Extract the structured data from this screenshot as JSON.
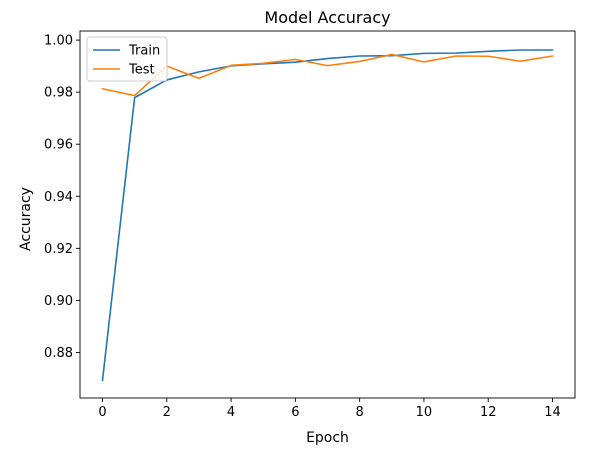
{
  "chart_data": {
    "type": "line",
    "title": "Model Accuracy",
    "xlabel": "Epoch",
    "ylabel": "Accuracy",
    "xlim": [
      -0.7,
      14.7
    ],
    "ylim": [
      0.8625,
      1.0035
    ],
    "xticks": [
      0,
      2,
      4,
      6,
      8,
      10,
      12,
      14
    ],
    "xtick_labels": [
      "0",
      "2",
      "4",
      "6",
      "8",
      "10",
      "12",
      "14"
    ],
    "yticks": [
      0.88,
      0.9,
      0.92,
      0.94,
      0.96,
      0.98,
      1.0
    ],
    "ytick_labels": [
      "0.88",
      "0.90",
      "0.92",
      "0.94",
      "0.96",
      "0.98",
      "1.00"
    ],
    "grid": false,
    "legend_position": "upper-left",
    "x": [
      0,
      1,
      2,
      3,
      4,
      5,
      6,
      7,
      8,
      9,
      10,
      11,
      12,
      13,
      14
    ],
    "series": [
      {
        "name": "Train",
        "color": "#1f77b4",
        "values": [
          0.8693,
          0.9779,
          0.9847,
          0.9878,
          0.9901,
          0.9909,
          0.9915,
          0.9929,
          0.9939,
          0.994,
          0.9949,
          0.995,
          0.9957,
          0.9962,
          0.9962
        ]
      },
      {
        "name": "Test",
        "color": "#ff7f0e",
        "values": [
          0.9813,
          0.9787,
          0.99,
          0.9853,
          0.9903,
          0.9911,
          0.9926,
          0.9902,
          0.9918,
          0.9945,
          0.9916,
          0.9939,
          0.9938,
          0.9919,
          0.9939
        ]
      }
    ]
  }
}
